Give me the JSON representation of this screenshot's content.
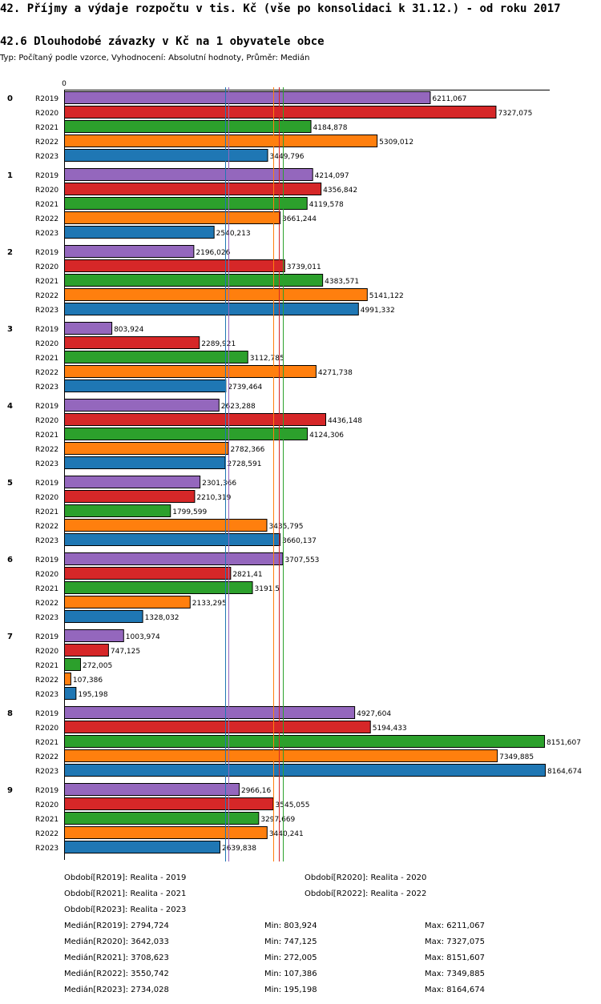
{
  "title": "42. Příjmy a výdaje rozpočtu v tis. Kč (vše po konsolidaci k 31.12.) - od roku 2017",
  "subtitle": "42.6 Dlouhodobé závazky v Kč na 1 obyvatele obce",
  "meta": "Typ: Počítaný podle vzorce, Vyhodnocení: Absolutní hodnoty, Průměr: Medián",
  "chart_data": {
    "type": "bar",
    "orientation": "horizontal",
    "axis_zero_label": "0",
    "xlim": [
      0,
      8164.674
    ],
    "groups": [
      "0",
      "1",
      "2",
      "3",
      "4",
      "5",
      "6",
      "7",
      "8",
      "9"
    ],
    "series": [
      {
        "name": "R2019",
        "color": "#9467bd",
        "values": [
          6211.067,
          4214.097,
          2196.026,
          803.924,
          2623.288,
          2301.366,
          3707.553,
          1003.974,
          4927.604,
          2966.16
        ]
      },
      {
        "name": "R2020",
        "color": "#d62728",
        "values": [
          7327.075,
          4356.842,
          3739.011,
          2289.921,
          4436.148,
          2210.319,
          2821.41,
          747.125,
          5194.433,
          3545.055
        ]
      },
      {
        "name": "R2021",
        "color": "#2ca02c",
        "values": [
          4184.878,
          4119.578,
          4383.571,
          3112.785,
          4124.306,
          1799.599,
          3191.5,
          272.005,
          8151.607,
          3297.669
        ]
      },
      {
        "name": "R2022",
        "color": "#ff7f0e",
        "values": [
          5309.012,
          3661.244,
          5141.122,
          4271.738,
          2782.366,
          3435.795,
          2133.295,
          107.386,
          7349.885,
          3440.241
        ]
      },
      {
        "name": "R2023",
        "color": "#1f77b4",
        "values": [
          3449.796,
          2540.213,
          4991.332,
          2739.464,
          2728.591,
          3660.137,
          1328.032,
          195.198,
          8164.674,
          2639.838
        ]
      }
    ],
    "value_labels": [
      [
        "6211,067",
        "7327,075",
        "4184,878",
        "5309,012",
        "3449,796"
      ],
      [
        "4214,097",
        "4356,842",
        "4119,578",
        "3661,244",
        "2540,213"
      ],
      [
        "2196,026",
        "3739,011",
        "4383,571",
        "5141,122",
        "4991,332"
      ],
      [
        "803,924",
        "2289,921",
        "3112,785",
        "4271,738",
        "2739,464"
      ],
      [
        "2623,288",
        "4436,148",
        "4124,306",
        "2782,366",
        "2728,591"
      ],
      [
        "2301,366",
        "2210,319",
        "1799,599",
        "3435,795",
        "3660,137"
      ],
      [
        "3707,553",
        "2821,41",
        "3191,5",
        "2133,295",
        "1328,032"
      ],
      [
        "1003,974",
        "747,125",
        "272,005",
        "107,386",
        "195,198"
      ],
      [
        "4927,604",
        "5194,433",
        "8151,607",
        "7349,885",
        "8164,674"
      ],
      [
        "2966,16",
        "3545,055",
        "3297,669",
        "3440,241",
        "2639,838"
      ]
    ],
    "median_lines": [
      {
        "series": "R2019",
        "value": 2794.724
      },
      {
        "series": "R2020",
        "value": 3642.033
      },
      {
        "series": "R2021",
        "value": 3708.623
      },
      {
        "series": "R2022",
        "value": 3550.742
      },
      {
        "series": "R2023",
        "value": 2734.028
      }
    ]
  },
  "legend": [
    {
      "label": "Období[R2019]: Realita - 2019"
    },
    {
      "label": "Období[R2020]: Realita - 2020"
    },
    {
      "label": "Období[R2021]: Realita - 2021"
    },
    {
      "label": "Období[R2022]: Realita - 2022"
    },
    {
      "label": "Období[R2023]: Realita - 2023"
    }
  ],
  "stats": [
    {
      "median": "Medián[R2019]: 2794,724",
      "min": "Min: 803,924",
      "max": "Max: 6211,067"
    },
    {
      "median": "Medián[R2020]: 3642,033",
      "min": "Min: 747,125",
      "max": "Max: 7327,075"
    },
    {
      "median": "Medián[R2021]: 3708,623",
      "min": "Min: 272,005",
      "max": "Max: 8151,607"
    },
    {
      "median": "Medián[R2022]: 3550,742",
      "min": "Min: 107,386",
      "max": "Max: 7349,885"
    },
    {
      "median": "Medián[R2023]: 2734,028",
      "min": "Min: 195,198",
      "max": "Max: 8164,674"
    }
  ]
}
